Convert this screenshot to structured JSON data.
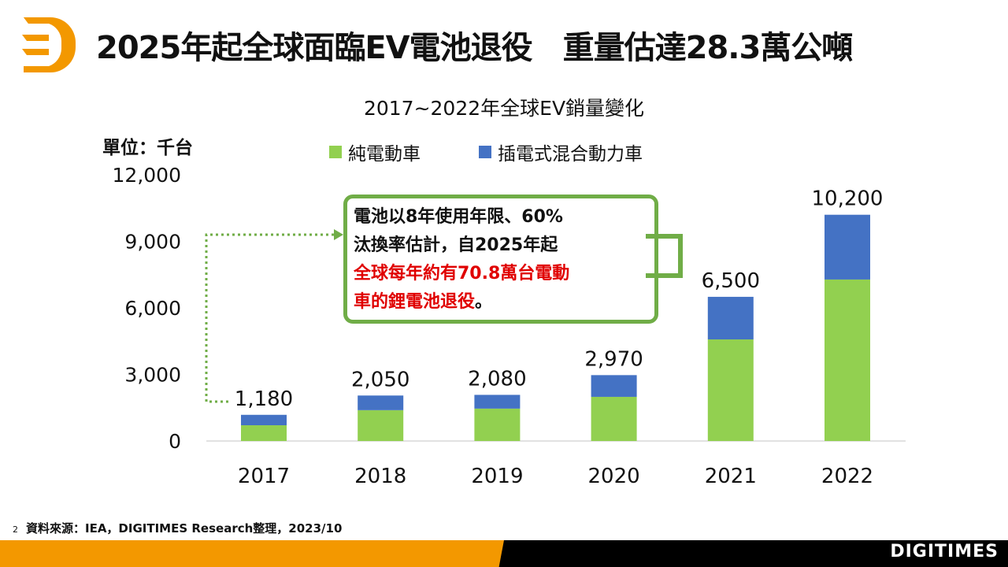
{
  "header": {
    "title": "2025年起全球面臨EV電池退役　重量估達28.3萬公噸"
  },
  "chart_data": {
    "type": "bar",
    "stacked": true,
    "title": "2017~2022年全球EV銷量變化",
    "unit_label": "單位：千台",
    "categories": [
      "2017",
      "2018",
      "2019",
      "2020",
      "2021",
      "2022"
    ],
    "series": [
      {
        "name": "純電動車",
        "color": "#92d050",
        "values": [
          710,
          1390,
          1460,
          1990,
          4580,
          7280
        ]
      },
      {
        "name": "插電式混合動力車",
        "color": "#4472c4",
        "values": [
          470,
          660,
          620,
          980,
          1920,
          2920
        ]
      }
    ],
    "totals": [
      "1,180",
      "2,050",
      "2,080",
      "2,970",
      "6,500",
      "10,200"
    ],
    "total_values": [
      1180,
      2050,
      2080,
      2970,
      6500,
      10200
    ],
    "yticks": [
      "0",
      "3,000",
      "6,000",
      "9,000",
      "12,000"
    ],
    "ytick_values": [
      0,
      3000,
      6000,
      9000,
      12000
    ],
    "ylim": [
      0,
      12000
    ],
    "legend": "top",
    "grid": false
  },
  "callout": {
    "line1": "電池以8年使用年限、60%",
    "line2": "汰換率估計，自2025年起",
    "line3": "全球每年約有70.8萬台電動",
    "line4a": "車的鋰電池退役",
    "line4b": "。"
  },
  "footer": {
    "page": "2",
    "source": "資料來源：IEA，DIGITIMES Research整理，2023/10",
    "brand": "DIGITIMES"
  }
}
